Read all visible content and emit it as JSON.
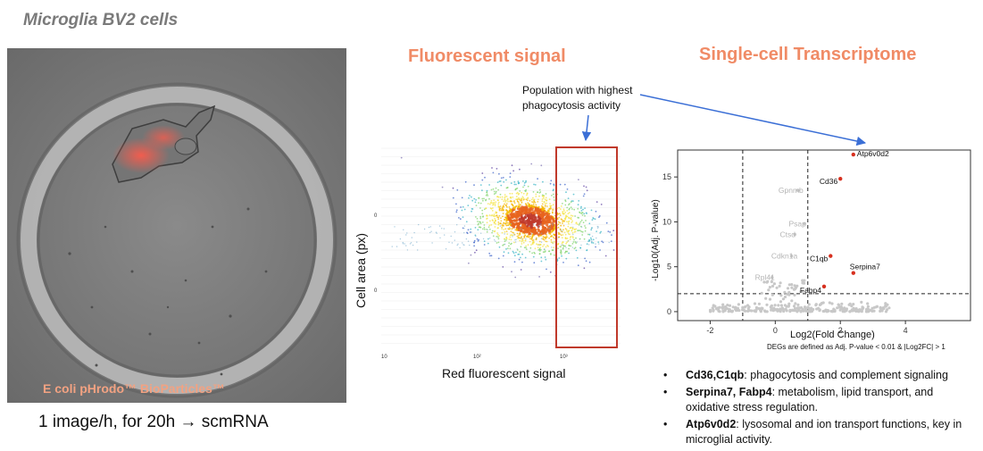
{
  "header": {
    "title": "Microglia BV2 cells"
  },
  "microscopy": {
    "caption": "E coli pHrodo™ BioParticles™",
    "rate_text": "1 image/h, for 20h → scmRNA"
  },
  "fluorescent": {
    "heading": "Fluorescent signal",
    "annotation_line1": "Population with highest",
    "annotation_line2": "phagocytosis activity",
    "chart_data": {
      "type": "scatter",
      "xlabel": "Red fluorescent signal",
      "ylabel": "Cell area (px)",
      "x_tick_labels": [
        "10",
        "10²",
        "10³"
      ],
      "y_tick_labels": [
        "0",
        "0"
      ],
      "highlight_region": "high red fluorescent signal",
      "colors": {
        "gate": "#c0392b"
      }
    }
  },
  "transcriptome": {
    "heading": "Single-cell Transcriptome",
    "chart_data": {
      "type": "scatter",
      "xlabel": "Log2(Fold Change)",
      "ylabel": "-Log10(Adj. P-value)",
      "note": "DEGs are defined as Adj. P-value < 0.01 & |Log2FC| > 1",
      "xlim": [
        -3,
        6
      ],
      "ylim": [
        -1,
        18
      ],
      "x_ticks": [
        -2,
        0,
        2,
        4
      ],
      "y_ticks": [
        0,
        5,
        10,
        15
      ],
      "thresholds": {
        "log2fc": [
          -1,
          1
        ],
        "neg_log10_p": 2
      },
      "significant_genes": [
        {
          "name": "Atp6v0d2",
          "x": 2.4,
          "y": 17.5
        },
        {
          "name": "Cd36",
          "x": 2.0,
          "y": 14.8
        },
        {
          "name": "C1qb",
          "x": 1.7,
          "y": 6.2
        },
        {
          "name": "Serpina7",
          "x": 2.4,
          "y": 4.3
        },
        {
          "name": "Fabp4",
          "x": 1.5,
          "y": 2.8
        }
      ],
      "other_genes": [
        {
          "name": "Gpnmb",
          "x": 0.7,
          "y": 13.5
        },
        {
          "name": "Psap",
          "x": 0.9,
          "y": 9.8
        },
        {
          "name": "Ctsd",
          "x": 0.6,
          "y": 8.6
        },
        {
          "name": "Cdkn1a",
          "x": 0.5,
          "y": 6.2
        },
        {
          "name": "Rpl41",
          "x": -0.1,
          "y": 3.8
        }
      ],
      "colors": {
        "significant": "#d7301f",
        "other": "#c8c8c8"
      }
    }
  },
  "bullets": [
    {
      "bold": "Cd36,C1qb",
      "text": ": phagocytosis and complement signaling"
    },
    {
      "bold": "Serpina7, Fabp4",
      "text": ": metabolism, lipid transport, and oxidative stress regulation."
    },
    {
      "bold": "Atp6v0d2",
      "text": ": lysosomal and ion transport functions, key in microglial activity."
    }
  ]
}
